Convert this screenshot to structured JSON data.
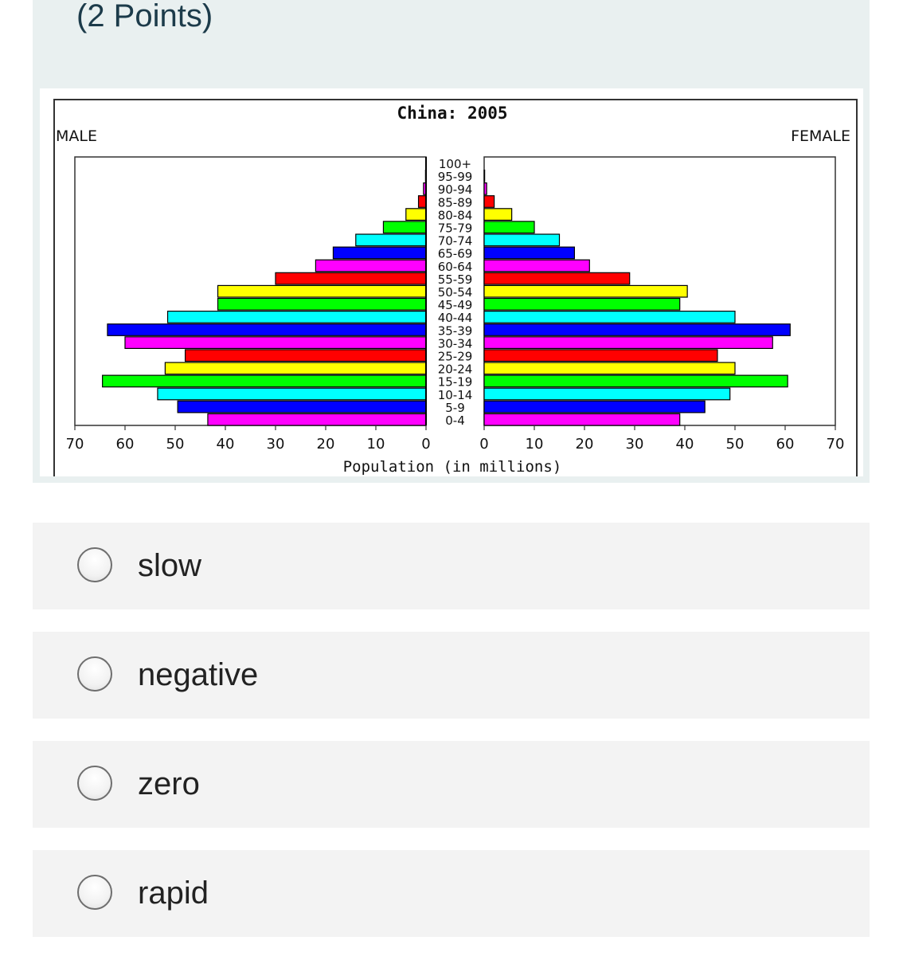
{
  "question": {
    "points_label": "(2 Points)"
  },
  "chart_data": {
    "type": "bar",
    "title": "China: 2005",
    "left_label": "MALE",
    "right_label": "FEMALE",
    "xlabel": "Population (in millions)",
    "xlim": [
      0,
      70
    ],
    "x_ticks": [
      "70",
      "60",
      "50",
      "40",
      "30",
      "20",
      "10",
      "0"
    ],
    "x_ticks_right": [
      "0",
      "10",
      "20",
      "30",
      "40",
      "50",
      "60",
      "70"
    ],
    "categories": [
      "0-4",
      "5-9",
      "10-14",
      "15-19",
      "20-24",
      "25-29",
      "30-34",
      "35-39",
      "40-44",
      "45-49",
      "50-54",
      "55-59",
      "60-64",
      "65-69",
      "70-74",
      "75-79",
      "80-84",
      "85-89",
      "90-94",
      "95-99",
      "100+"
    ],
    "series": [
      {
        "name": "MALE",
        "values": [
          43.5,
          49.5,
          53.5,
          64.5,
          52,
          48,
          60,
          63.5,
          51.5,
          41.5,
          41.5,
          30,
          22,
          18.5,
          14,
          8.5,
          4,
          1.5,
          0.5,
          0.1,
          0
        ]
      },
      {
        "name": "FEMALE",
        "values": [
          39,
          44,
          49,
          60.5,
          50,
          46.5,
          57.5,
          61,
          50,
          39,
          40.5,
          29,
          21,
          18,
          15,
          10,
          5.5,
          2,
          0.5,
          0.1,
          0
        ]
      }
    ],
    "colors": [
      "#ff00ff",
      "#0000ff",
      "#00ffff",
      "#00ff00",
      "#ffff00",
      "#ff0000"
    ]
  },
  "options": [
    {
      "label": "slow"
    },
    {
      "label": "negative"
    },
    {
      "label": "zero"
    },
    {
      "label": "rapid"
    }
  ]
}
